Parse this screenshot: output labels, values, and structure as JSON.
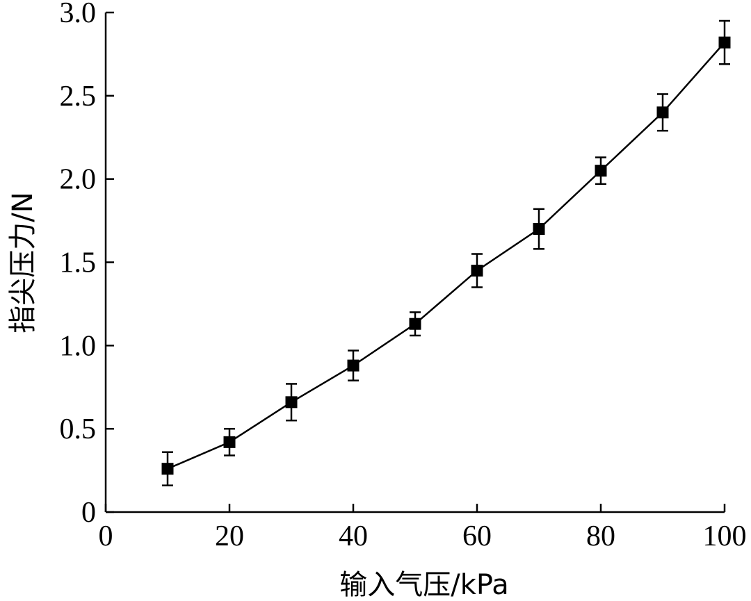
{
  "chart_data": {
    "type": "line",
    "title": "",
    "xlabel": "输入气压/kPa",
    "ylabel": "指尖压力/N",
    "xlim": [
      0,
      100
    ],
    "ylim": [
      0,
      3.0
    ],
    "xticks": [
      0,
      20,
      40,
      60,
      80,
      100
    ],
    "xtick_labels": [
      "0",
      "20",
      "40",
      "60",
      "80",
      "100"
    ],
    "yticks": [
      0,
      0.5,
      1.0,
      1.5,
      2.0,
      2.5,
      3.0
    ],
    "ytick_labels": [
      "0",
      "0.5",
      "1.0",
      "1.5",
      "2.0",
      "2.5",
      "3.0"
    ],
    "grid": false,
    "series": [
      {
        "marker": "square",
        "color": "#000000",
        "x": [
          10,
          20,
          30,
          40,
          50,
          60,
          70,
          80,
          90,
          100
        ],
        "y": [
          0.26,
          0.42,
          0.66,
          0.88,
          1.13,
          1.45,
          1.7,
          2.05,
          2.4,
          2.82
        ],
        "error": [
          0.1,
          0.08,
          0.11,
          0.09,
          0.07,
          0.1,
          0.12,
          0.08,
          0.11,
          0.13
        ]
      }
    ]
  }
}
